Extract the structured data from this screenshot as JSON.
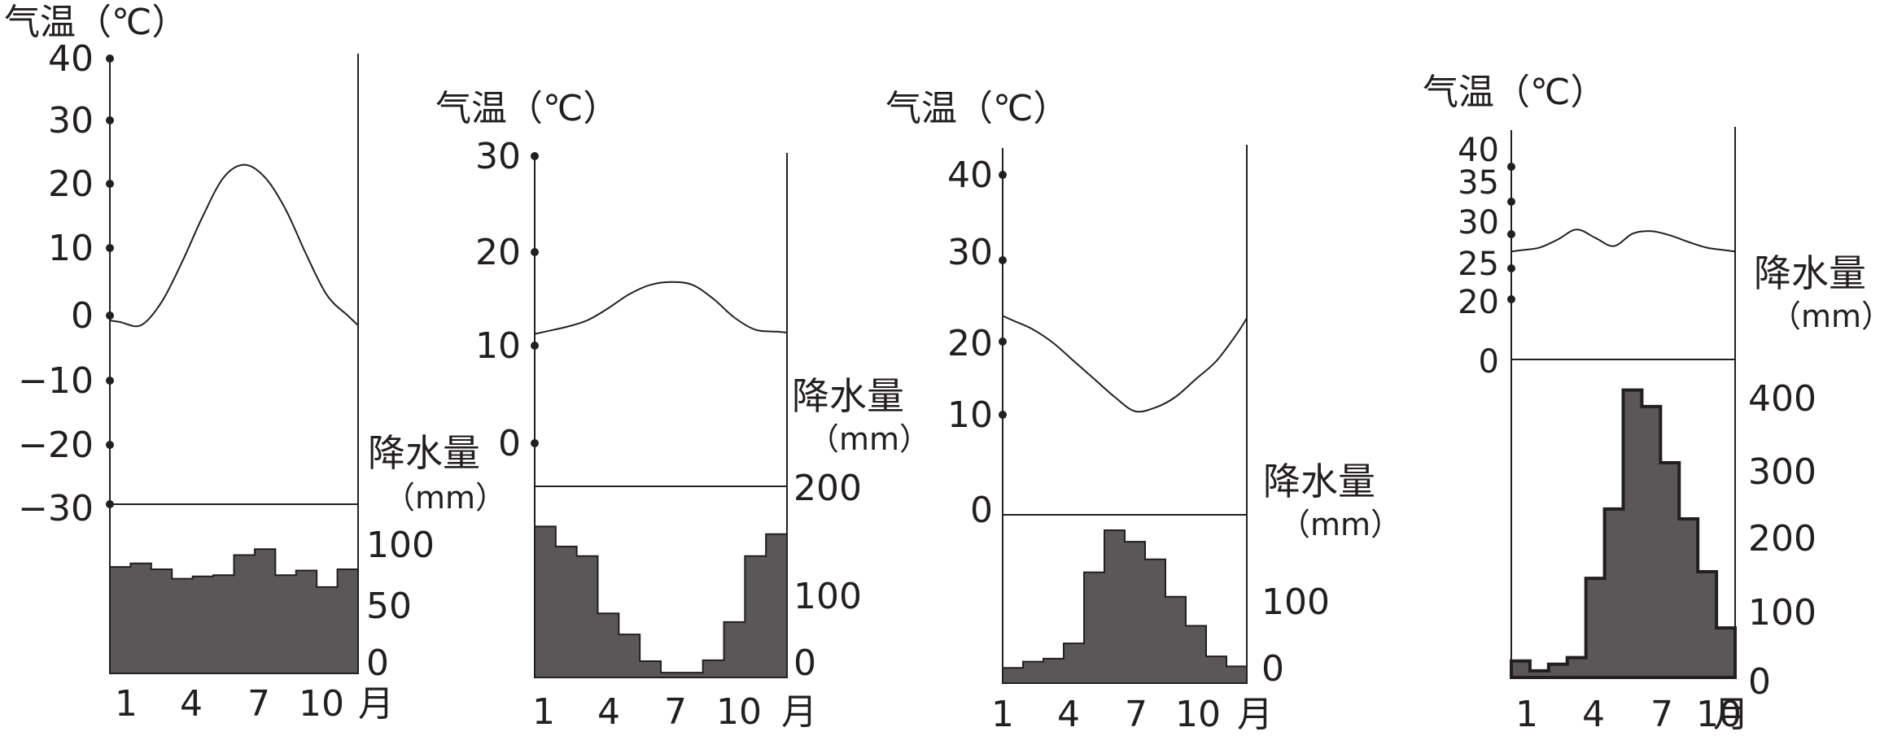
{
  "chart_data": [
    {
      "type": "climograph",
      "temp_label": "气温（℃）",
      "precip_label": "降水量",
      "precip_unit": "（mm）",
      "month_suffix": "月",
      "x_ticks": [
        "1",
        "4",
        "7",
        "10"
      ],
      "temp_ticks": [
        "40",
        "30",
        "20",
        "10",
        "0",
        "−10",
        "−20",
        "−30"
      ],
      "temp_tick_values": [
        40,
        30,
        20,
        10,
        0,
        -10,
        -20,
        -30
      ],
      "temp_range": [
        -30,
        40
      ],
      "precip_ticks": [
        "100",
        "50",
        "0"
      ],
      "precip_tick_values": [
        100,
        50,
        0
      ],
      "precip_range": [
        0,
        110
      ],
      "temperature": [
        -1,
        -1.5,
        2,
        8,
        15,
        21,
        23,
        21,
        16,
        9,
        3,
        0
      ],
      "precipitation": [
        90,
        93,
        88,
        80,
        82,
        83,
        100,
        105,
        83,
        87,
        73,
        88
      ]
    },
    {
      "type": "climograph",
      "temp_label": "气温（℃）",
      "precip_label": "降水量",
      "precip_unit": "（mm）",
      "month_suffix": "月",
      "x_ticks": [
        "1",
        "4",
        "7",
        "10"
      ],
      "temp_ticks": [
        "30",
        "20",
        "10",
        "0"
      ],
      "temp_tick_values": [
        30,
        20,
        10,
        0
      ],
      "temp_range": [
        -5,
        30
      ],
      "precip_ticks": [
        "200",
        "100",
        "0"
      ],
      "precip_tick_values": [
        200,
        100,
        0
      ],
      "precip_range": [
        0,
        200
      ],
      "temperature": [
        11.5,
        12,
        12.7,
        14,
        15.5,
        16.5,
        16.8,
        16.5,
        15,
        13,
        11.7,
        11.5
      ],
      "precipitation": [
        158,
        137,
        127,
        67,
        45,
        17,
        5,
        5,
        18,
        58,
        127,
        150
      ]
    },
    {
      "type": "climograph",
      "temp_label": "气温（℃）",
      "precip_label": "降水量",
      "precip_unit": "（mm）",
      "month_suffix": "月",
      "x_ticks": [
        "1",
        "4",
        "7",
        "10"
      ],
      "temp_ticks": [
        "40",
        "30",
        "20",
        "10",
        "0"
      ],
      "temp_tick_values": [
        40,
        30,
        20,
        10,
        0
      ],
      "temp_range": [
        0,
        45
      ],
      "precip_ticks": [
        "100",
        "0"
      ],
      "precip_tick_values": [
        100,
        0
      ],
      "precip_range": [
        0,
        200
      ],
      "temperature": [
        22.5,
        21.5,
        20,
        17.5,
        15,
        12.5,
        10.5,
        11,
        12.5,
        15,
        17.5,
        21
      ],
      "precipitation": [
        20,
        28,
        32,
        52,
        145,
        200,
        185,
        162,
        113,
        75,
        35,
        22
      ]
    },
    {
      "type": "climograph",
      "temp_label": "气温（℃）",
      "precip_label": "降水量",
      "precip_unit": "（mm）",
      "month_suffix": "月",
      "x_ticks": [
        "1",
        "4",
        "7",
        "10"
      ],
      "temp_ticks": [
        "40",
        "35",
        "30",
        "25",
        "20",
        "0"
      ],
      "temp_tick_values": [
        40,
        35,
        30,
        25,
        20,
        0
      ],
      "temp_range": [
        0,
        45
      ],
      "precip_ticks": [
        "400",
        "300",
        "200",
        "100",
        "0"
      ],
      "precip_tick_values": [
        400,
        300,
        200,
        100,
        0
      ],
      "precip_range": [
        0,
        480
      ],
      "temperature": [
        26.5,
        26.8,
        27.8,
        29,
        28,
        27,
        28.5,
        28.8,
        28.3,
        27.5,
        26.8,
        26.5
      ],
      "precipitation": [
        25,
        10,
        20,
        30,
        150,
        255,
        435,
        410,
        325,
        240,
        160,
        75
      ]
    }
  ]
}
